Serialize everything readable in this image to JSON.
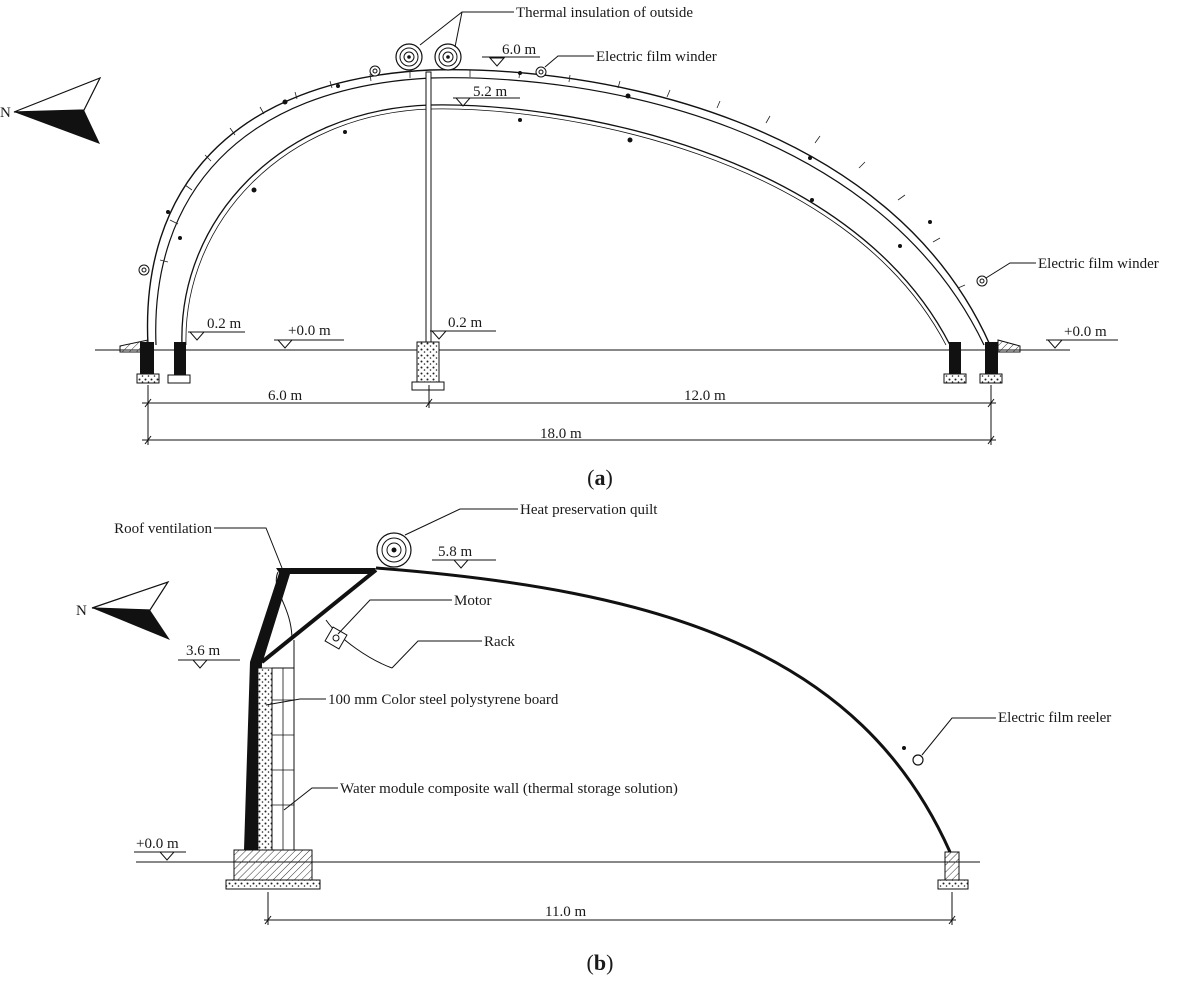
{
  "panel_a": {
    "north": "N",
    "thermal_insulation": "Thermal insulation of outside",
    "film_winder_top": "Electric film winder",
    "film_winder_right": "Electric film winder",
    "elev_ridge_outer": "6.0 m",
    "elev_ridge_inner": "5.2 m",
    "elev_left": "0.2 m",
    "elev_left_ground": "+0.0 m",
    "elev_mid": "0.2 m",
    "elev_right_ground": "+0.0 m",
    "dim_left": "6.0 m",
    "dim_right": "12.0 m",
    "dim_total": "18.0 m",
    "caption_open": "(",
    "caption_letter": "a",
    "caption_close": ")"
  },
  "panel_b": {
    "north": "N",
    "heat_quilt": "Heat preservation quilt",
    "roof_ventilation": "Roof ventilation",
    "motor": "Motor",
    "rack": "Rack",
    "board": "100 mm Color steel polystyrene board",
    "wall": "Water module composite wall (thermal storage solution)",
    "film_reeler": "Electric film reeler",
    "elev_ridge": "5.8 m",
    "elev_wall": "3.6 m",
    "elev_ground": "+0.0 m",
    "dim_span": "11.0 m",
    "caption_open": "(",
    "caption_letter": "b",
    "caption_close": ")"
  }
}
